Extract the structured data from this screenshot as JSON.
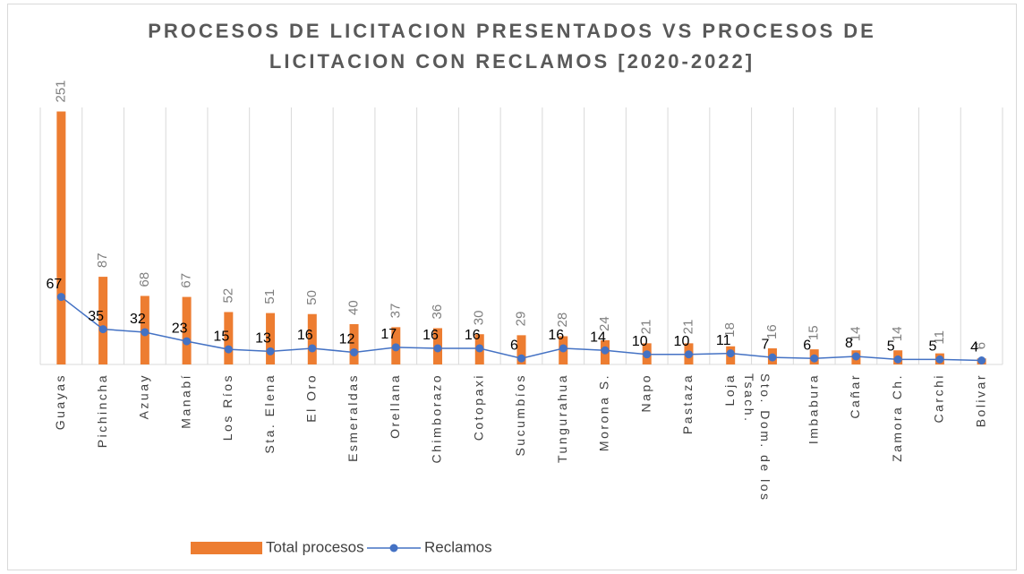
{
  "chart_data": {
    "type": "bar-line",
    "title": "PROCESOS DE LICITACION PRESENTADOS VS PROCESOS DE LICITACION CON RECLAMOS [2020-2022]",
    "categories": [
      "Guayas",
      "Pichincha",
      "Azuay",
      "Manabí",
      "Los Ríos",
      "Sta. Elena",
      "El Oro",
      "Esmeraldas",
      "Orellana",
      "Chimborazo",
      "Cotopaxi",
      "Sucumbíos",
      "Tungurahua",
      "Morona S.",
      "Napo",
      "Pastaza",
      "Loja",
      "Sto. Dom. de los Tsach.",
      "Imbabura",
      "Cañar",
      "Zamora Ch.",
      "Carchi",
      "Bolivar"
    ],
    "series": [
      {
        "name": "Total procesos",
        "type": "bar",
        "color": "#ed7d31",
        "values": [
          251,
          87,
          68,
          67,
          52,
          51,
          50,
          40,
          37,
          36,
          30,
          29,
          28,
          24,
          21,
          21,
          18,
          16,
          15,
          14,
          14,
          11,
          6
        ]
      },
      {
        "name": "Reclamos",
        "type": "line",
        "color": "#4472c4",
        "values": [
          67,
          35,
          32,
          23,
          15,
          13,
          16,
          12,
          17,
          16,
          16,
          6,
          16,
          14,
          10,
          10,
          11,
          7,
          6,
          8,
          5,
          5,
          4
        ]
      }
    ],
    "ylim": [
      0,
      255
    ],
    "grid": true,
    "legend": "bottom"
  }
}
